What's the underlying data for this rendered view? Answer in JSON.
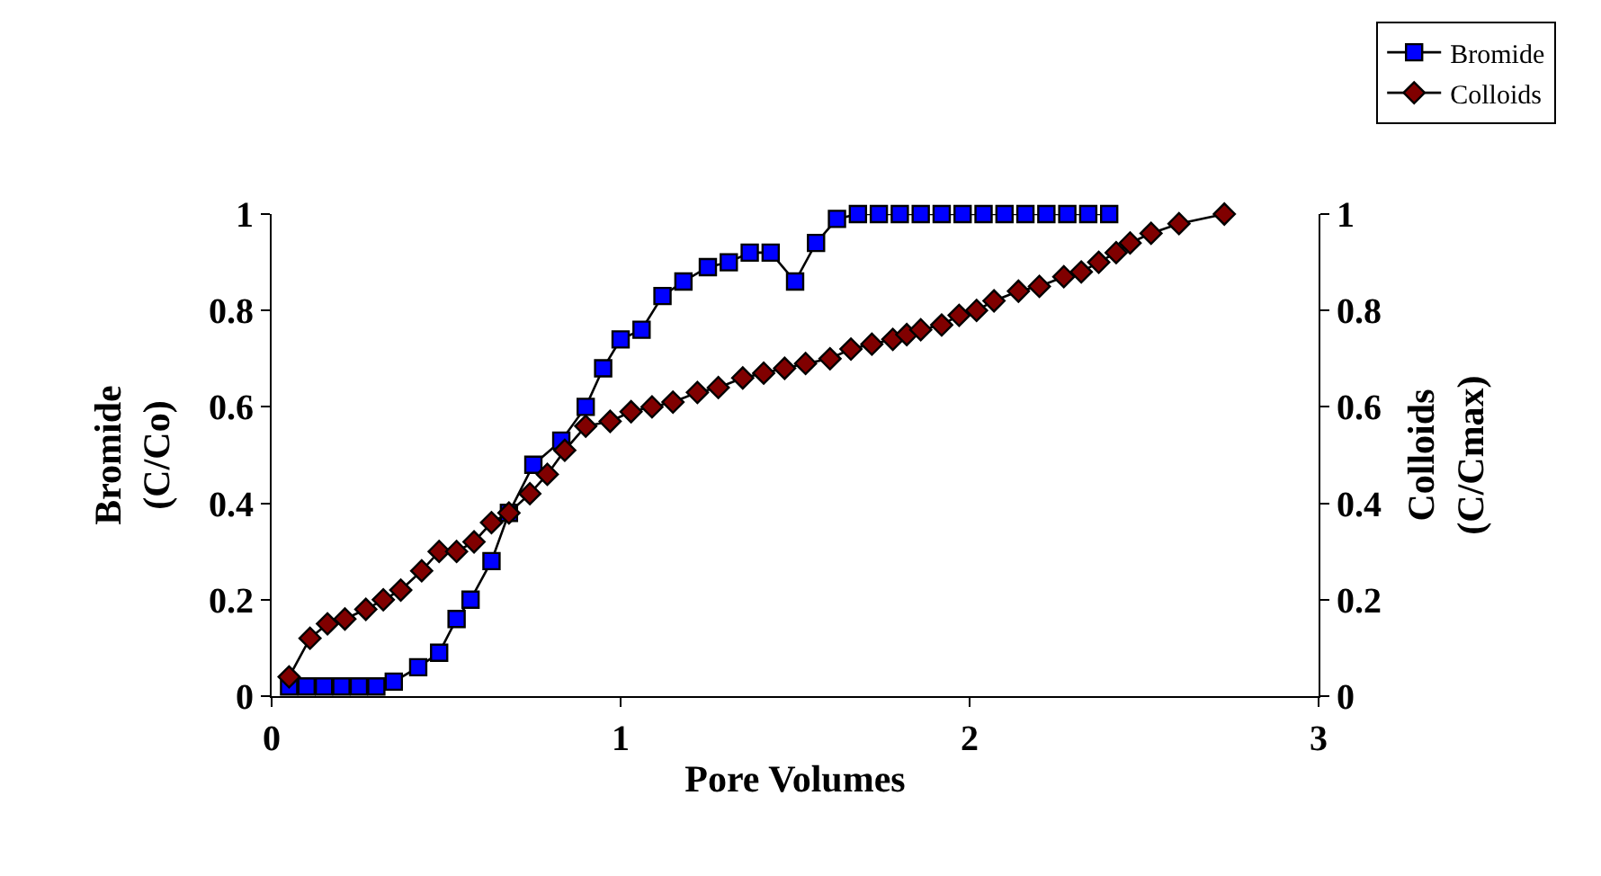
{
  "chart_data": {
    "type": "line",
    "xlabel": "Pore Volumes",
    "ylabel": "Bromide\n(C/Co)",
    "y2label": "Colloids\n(C/Cmax)",
    "xlim": [
      0,
      3
    ],
    "xticks": [
      0,
      1,
      2,
      3
    ],
    "ylim": [
      0,
      1
    ],
    "yticks": [
      0,
      0.2,
      0.4,
      0.6,
      0.8,
      1
    ],
    "y2lim": [
      0,
      1
    ],
    "y2ticks": [
      0,
      0.2,
      0.4,
      0.6,
      0.8,
      1
    ],
    "legend": "top right",
    "series": [
      {
        "name": "Bromide",
        "color": "#0000ff",
        "marker": "square",
        "x": [
          0.05,
          0.1,
          0.15,
          0.2,
          0.25,
          0.3,
          0.35,
          0.42,
          0.48,
          0.53,
          0.57,
          0.63,
          0.68,
          0.75,
          0.83,
          0.9,
          0.95,
          1.0,
          1.06,
          1.12,
          1.18,
          1.25,
          1.31,
          1.37,
          1.43,
          1.5,
          1.56,
          1.62,
          1.68,
          1.74,
          1.8,
          1.86,
          1.92,
          1.98,
          2.04,
          2.1,
          2.16,
          2.22,
          2.28,
          2.34,
          2.4
        ],
        "values": [
          0.02,
          0.02,
          0.02,
          0.02,
          0.02,
          0.02,
          0.03,
          0.06,
          0.09,
          0.16,
          0.2,
          0.28,
          0.38,
          0.48,
          0.53,
          0.6,
          0.68,
          0.74,
          0.76,
          0.83,
          0.86,
          0.89,
          0.9,
          0.92,
          0.92,
          0.86,
          0.94,
          0.99,
          1,
          1,
          1,
          1,
          1,
          1,
          1,
          1,
          1,
          1,
          1,
          1,
          1
        ]
      },
      {
        "name": "Colloids",
        "color": "#800000",
        "marker": "diamond",
        "axis": "y2",
        "x": [
          0.05,
          0.11,
          0.16,
          0.21,
          0.27,
          0.32,
          0.37,
          0.43,
          0.48,
          0.53,
          0.58,
          0.63,
          0.68,
          0.74,
          0.79,
          0.84,
          0.9,
          0.97,
          1.03,
          1.09,
          1.15,
          1.22,
          1.28,
          1.35,
          1.41,
          1.47,
          1.53,
          1.6,
          1.66,
          1.72,
          1.78,
          1.82,
          1.86,
          1.92,
          1.97,
          2.02,
          2.07,
          2.14,
          2.2,
          2.27,
          2.32,
          2.37,
          2.42,
          2.46,
          2.52,
          2.6,
          2.73
        ],
        "values": [
          0.04,
          0.12,
          0.15,
          0.16,
          0.18,
          0.2,
          0.22,
          0.26,
          0.3,
          0.3,
          0.32,
          0.36,
          0.38,
          0.42,
          0.46,
          0.51,
          0.56,
          0.57,
          0.59,
          0.6,
          0.61,
          0.63,
          0.64,
          0.66,
          0.67,
          0.68,
          0.69,
          0.7,
          0.72,
          0.73,
          0.74,
          0.75,
          0.76,
          0.77,
          0.79,
          0.8,
          0.82,
          0.84,
          0.85,
          0.87,
          0.88,
          0.9,
          0.92,
          0.94,
          0.96,
          0.98,
          1.0
        ]
      }
    ]
  }
}
